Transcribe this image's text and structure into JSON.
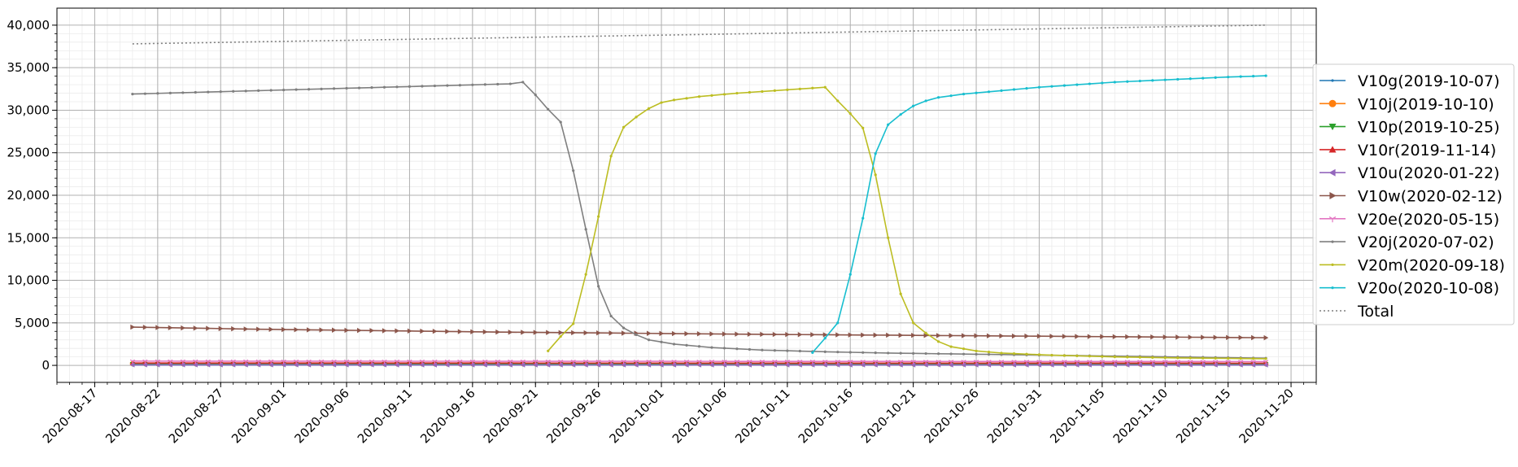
{
  "chart_data": {
    "type": "line",
    "title": "",
    "xlabel": "",
    "ylabel": "",
    "xlim": [
      "2020-08-14",
      "2020-11-22"
    ],
    "ylim": [
      -2000,
      42000
    ],
    "yticks": [
      0,
      5000,
      10000,
      15000,
      20000,
      25000,
      30000,
      35000,
      40000
    ],
    "ytick_labels": [
      "0",
      "5,000",
      "10,000",
      "15,000",
      "20,000",
      "25,000",
      "30,000",
      "35,000",
      "40,000"
    ],
    "xticks": [
      "2020-08-17",
      "2020-08-22",
      "2020-08-27",
      "2020-09-01",
      "2020-09-06",
      "2020-09-11",
      "2020-09-16",
      "2020-09-21",
      "2020-09-26",
      "2020-10-01",
      "2020-10-06",
      "2020-10-11",
      "2020-10-16",
      "2020-10-21",
      "2020-10-26",
      "2020-10-31",
      "2020-11-05",
      "2020-11-10",
      "2020-11-15",
      "2020-11-20"
    ],
    "grid": "major and minor",
    "legend_position": "right, outside plot",
    "series": [
      {
        "name": "V10g(2019-10-07)",
        "color": "#1f77b4",
        "marker": "point",
        "start": "2020-08-20",
        "end": "2020-11-18",
        "values": [
          [
            0,
            50
          ],
          [
            90,
            40
          ]
        ]
      },
      {
        "name": "V10j(2019-10-10)",
        "color": "#ff7f0e",
        "marker": "circle",
        "start": "2020-08-20",
        "end": "2020-11-18",
        "values": [
          [
            0,
            200
          ],
          [
            90,
            180
          ]
        ]
      },
      {
        "name": "V10p(2019-10-25)",
        "color": "#2ca02c",
        "marker": "triangle-down",
        "start": "2020-08-20",
        "end": "2020-11-18",
        "values": [
          [
            0,
            150
          ],
          [
            90,
            130
          ]
        ]
      },
      {
        "name": "V10r(2019-11-14)",
        "color": "#d62728",
        "marker": "triangle-up",
        "start": "2020-08-20",
        "end": "2020-11-18",
        "values": [
          [
            0,
            280
          ],
          [
            90,
            260
          ]
        ]
      },
      {
        "name": "V10u(2020-01-22)",
        "color": "#9467bd",
        "marker": "triangle-left",
        "start": "2020-08-20",
        "end": "2020-11-18",
        "values": [
          [
            0,
            60
          ],
          [
            90,
            50
          ]
        ]
      },
      {
        "name": "V10w(2020-02-12)",
        "color": "#8c564b",
        "marker": "triangle-right",
        "start": "2020-08-20",
        "end": "2020-11-18",
        "values": [
          [
            0,
            4500
          ],
          [
            10,
            4250
          ],
          [
            30,
            3900
          ],
          [
            50,
            3650
          ],
          [
            70,
            3450
          ],
          [
            90,
            3250
          ]
        ]
      },
      {
        "name": "V20e(2020-05-15)",
        "color": "#e377c2",
        "marker": "tri",
        "start": "2020-08-20",
        "end": "2020-11-18",
        "values": [
          [
            0,
            500
          ],
          [
            90,
            450
          ]
        ]
      },
      {
        "name": "V20j(2020-07-02)",
        "color": "#7f7f7f",
        "marker": "point",
        "start": "2020-08-20",
        "end": "2020-11-18",
        "values": [
          [
            0,
            31900
          ],
          [
            10,
            32300
          ],
          [
            20,
            32700
          ],
          [
            30,
            33100
          ],
          [
            31,
            33300
          ],
          [
            32,
            31800
          ],
          [
            33,
            30100
          ],
          [
            34,
            28600
          ],
          [
            35,
            22900
          ],
          [
            36,
            16000
          ],
          [
            37,
            9300
          ],
          [
            38,
            5800
          ],
          [
            39,
            4400
          ],
          [
            40,
            3600
          ],
          [
            41,
            3000
          ],
          [
            43,
            2500
          ],
          [
            46,
            2100
          ],
          [
            50,
            1800
          ],
          [
            55,
            1600
          ],
          [
            60,
            1450
          ],
          [
            65,
            1350
          ],
          [
            70,
            1250
          ],
          [
            75,
            1150
          ],
          [
            80,
            1050
          ],
          [
            85,
            950
          ],
          [
            90,
            850
          ]
        ]
      },
      {
        "name": "V20m(2020-09-18)",
        "color": "#bcbd22",
        "marker": "point",
        "start": "2020-09-22",
        "end": "2020-11-18",
        "values": [
          [
            0,
            1700
          ],
          [
            1,
            3400
          ],
          [
            2,
            4900
          ],
          [
            3,
            10700
          ],
          [
            4,
            17500
          ],
          [
            5,
            24600
          ],
          [
            6,
            28000
          ],
          [
            7,
            29200
          ],
          [
            8,
            30200
          ],
          [
            9,
            30900
          ],
          [
            10,
            31200
          ],
          [
            12,
            31600
          ],
          [
            15,
            32000
          ],
          [
            18,
            32300
          ],
          [
            21,
            32600
          ],
          [
            22,
            32700
          ],
          [
            23,
            31100
          ],
          [
            24,
            29600
          ],
          [
            25,
            27900
          ],
          [
            26,
            22400
          ],
          [
            27,
            15000
          ],
          [
            28,
            8400
          ],
          [
            29,
            5000
          ],
          [
            30,
            3800
          ],
          [
            31,
            2800
          ],
          [
            32,
            2200
          ],
          [
            34,
            1700
          ],
          [
            36,
            1450
          ],
          [
            40,
            1200
          ],
          [
            45,
            1000
          ],
          [
            50,
            880
          ],
          [
            57,
            780
          ]
        ]
      },
      {
        "name": "V20o(2020-10-08)",
        "color": "#17becf",
        "marker": "point",
        "start": "2020-10-13",
        "end": "2020-11-18",
        "values": [
          [
            0,
            1500
          ],
          [
            1,
            3200
          ],
          [
            2,
            5000
          ],
          [
            3,
            10700
          ],
          [
            4,
            17300
          ],
          [
            5,
            24900
          ],
          [
            6,
            28300
          ],
          [
            7,
            29500
          ],
          [
            8,
            30500
          ],
          [
            9,
            31100
          ],
          [
            10,
            31500
          ],
          [
            12,
            31900
          ],
          [
            15,
            32300
          ],
          [
            18,
            32700
          ],
          [
            21,
            33000
          ],
          [
            24,
            33300
          ],
          [
            27,
            33500
          ],
          [
            30,
            33700
          ],
          [
            33,
            33900
          ],
          [
            36,
            34050
          ]
        ]
      },
      {
        "name": "Total",
        "color": "#7f7f7f",
        "marker": "none",
        "dashed": true,
        "start": "2020-08-20",
        "end": "2020-11-18",
        "values": [
          [
            0,
            37800
          ],
          [
            90,
            40000
          ]
        ]
      }
    ]
  }
}
